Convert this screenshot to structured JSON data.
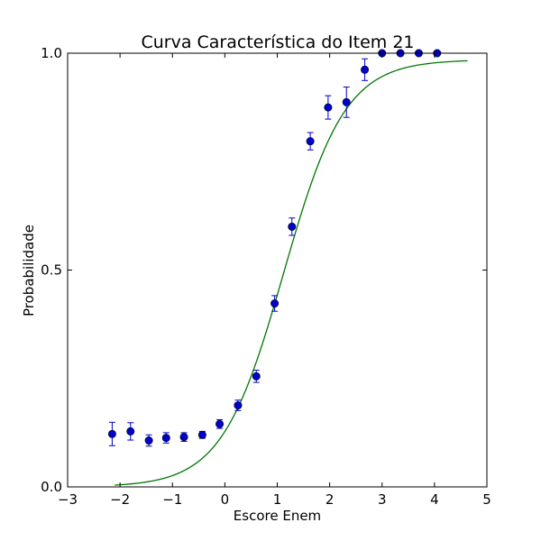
{
  "chart_data": {
    "type": "scatter",
    "title": "Curva Característica do Item 21",
    "xlabel": "Escore Enem",
    "ylabel": "Probabilidade",
    "xlim": [
      -3,
      5
    ],
    "ylim": [
      0,
      1
    ],
    "x_ticks": [
      -3,
      -2,
      -1,
      0,
      1,
      2,
      3,
      4,
      5
    ],
    "x_tick_labels": [
      "−3",
      "−2",
      "−1",
      "0",
      "1",
      "2",
      "3",
      "4",
      "5"
    ],
    "y_ticks": [
      0,
      0.5,
      1
    ],
    "y_tick_labels": [
      "0.0",
      "0.5",
      "1.0"
    ],
    "grid": false,
    "colors": {
      "points": "#0000cc",
      "curve": "#007700"
    },
    "series": [
      {
        "kind": "errorbar-points",
        "x": [
          -2.15,
          -1.8,
          -1.45,
          -1.12,
          -0.78,
          -0.43,
          -0.1,
          0.25,
          0.6,
          0.95,
          1.28,
          1.63,
          1.97,
          2.32,
          2.67,
          3.0,
          3.35,
          3.7,
          4.05
        ],
        "y": [
          0.122,
          0.128,
          0.107,
          0.113,
          0.115,
          0.12,
          0.145,
          0.188,
          0.255,
          0.423,
          0.6,
          0.797,
          0.875,
          0.887,
          0.962,
          1.0,
          1.0,
          1.0,
          1.0
        ],
        "err": [
          0.027,
          0.02,
          0.013,
          0.012,
          0.01,
          0.008,
          0.01,
          0.012,
          0.014,
          0.018,
          0.02,
          0.02,
          0.027,
          0.035,
          0.025,
          0.0,
          0.0,
          0.0,
          0.0
        ]
      },
      {
        "kind": "curve",
        "x_range": [
          -2.1,
          4.63
        ],
        "a": 1.7,
        "b": 1.12,
        "c": 0.0,
        "d": 0.985
      }
    ]
  }
}
